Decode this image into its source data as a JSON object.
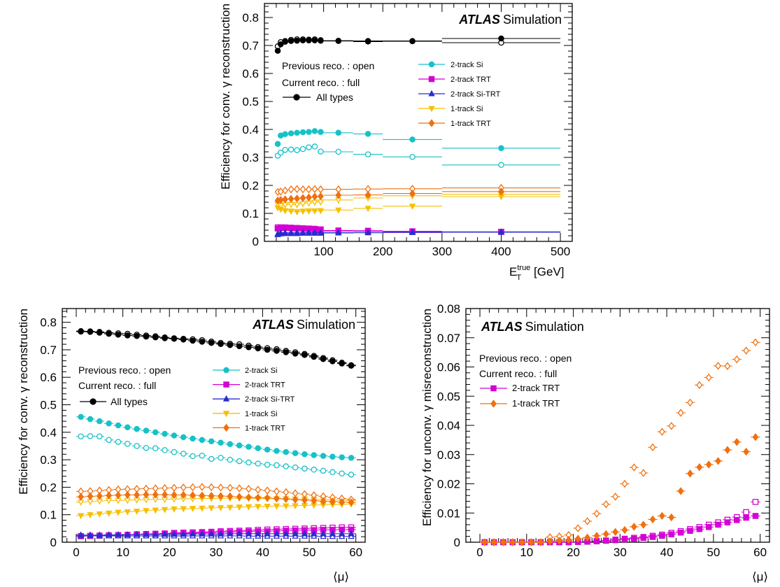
{
  "chart_data": [
    {
      "id": "top",
      "type": "scatter",
      "xlabel": "E",
      "xlabel_sub": "T",
      "xlabel_sup": "true",
      "xlabel_unit": "[GeV]",
      "ylabel": "Efficiency for conv. γ reconstruction",
      "xlim": [
        0,
        520
      ],
      "ylim": [
        0,
        0.85
      ],
      "xticks": [
        100,
        200,
        300,
        400,
        500
      ],
      "yticks": [
        0,
        0.1,
        0.2,
        0.3,
        0.4,
        0.5,
        0.6,
        0.7,
        0.8
      ],
      "atlas": "ATLAS",
      "atlas_suffix": "Simulation",
      "note_previous": "Previous reco. : open",
      "note_current": "Current reco.   : full",
      "legend_all": "All types",
      "legend": [
        "2-track Si",
        "2-track TRT",
        "2-track Si-TRT",
        "1-track Si",
        "1-track TRT"
      ],
      "x": [
        22.5,
        27.5,
        35,
        45,
        55,
        65,
        75,
        85,
        95,
        125,
        175,
        250,
        400
      ],
      "xerr": [
        2.5,
        2.5,
        5,
        5,
        5,
        5,
        5,
        5,
        5,
        25,
        25,
        50,
        100
      ],
      "series": [
        {
          "color": "#000000",
          "marker": "circle",
          "current": [
            0.681,
            0.704,
            0.713,
            0.716,
            0.717,
            0.718,
            0.718,
            0.718,
            0.717,
            0.716,
            0.716,
            0.716,
            0.725
          ],
          "previous": [
            0.697,
            0.712,
            0.716,
            0.72,
            0.722,
            0.722,
            0.721,
            0.722,
            0.719,
            0.717,
            0.714,
            0.715,
            0.71
          ]
        },
        {
          "color": "#17c1c8",
          "marker": "circle",
          "current": [
            0.348,
            0.378,
            0.383,
            0.386,
            0.388,
            0.39,
            0.391,
            0.394,
            0.391,
            0.388,
            0.384,
            0.364,
            0.333
          ],
          "previous": [
            0.306,
            0.317,
            0.327,
            0.328,
            0.326,
            0.33,
            0.336,
            0.339,
            0.321,
            0.32,
            0.311,
            0.302,
            0.273
          ]
        },
        {
          "color": "#d400d4",
          "marker": "square",
          "current": [
            0.046,
            0.048,
            0.048,
            0.047,
            0.046,
            0.045,
            0.044,
            0.042,
            0.04,
            0.037,
            0.036,
            0.035,
            0.034
          ],
          "previous": [
            0.05,
            0.05,
            0.05,
            0.049,
            0.048,
            0.047,
            0.046,
            0.045,
            0.043,
            0.039,
            0.038,
            0.036,
            0.034
          ]
        },
        {
          "color": "#2b2bcf",
          "marker": "triangle",
          "current": [
            0.027,
            0.03,
            0.031,
            0.031,
            0.031,
            0.031,
            0.031,
            0.031,
            0.031,
            0.031,
            0.031,
            0.032,
            0.033
          ],
          "previous": [
            0.024,
            0.027,
            0.028,
            0.028,
            0.028,
            0.029,
            0.029,
            0.029,
            0.029,
            0.03,
            0.031,
            0.032,
            0.033
          ]
        },
        {
          "color": "#f5c000",
          "marker": "triangledown",
          "current": [
            0.12,
            0.115,
            0.11,
            0.108,
            0.106,
            0.108,
            0.109,
            0.109,
            0.11,
            0.112,
            0.118,
            0.126,
            0.16
          ],
          "previous": [
            0.133,
            0.127,
            0.131,
            0.132,
            0.131,
            0.135,
            0.137,
            0.14,
            0.141,
            0.148,
            0.155,
            0.163,
            0.168
          ]
        },
        {
          "color": "#f07010",
          "marker": "diamond",
          "current": [
            0.146,
            0.148,
            0.15,
            0.152,
            0.153,
            0.155,
            0.157,
            0.16,
            0.161,
            0.165,
            0.166,
            0.171,
            0.178
          ],
          "previous": [
            0.177,
            0.178,
            0.182,
            0.186,
            0.187,
            0.186,
            0.186,
            0.187,
            0.186,
            0.186,
            0.187,
            0.188,
            0.191
          ]
        }
      ]
    },
    {
      "id": "bottom-left",
      "type": "scatter",
      "xlabel": "⟨μ⟩",
      "ylabel": "Efficiency for conv. γ reconstruction",
      "xlim": [
        -3,
        62
      ],
      "ylim": [
        0,
        0.85
      ],
      "xticks": [
        0,
        10,
        20,
        30,
        40,
        50,
        60
      ],
      "yticks": [
        0,
        0.1,
        0.2,
        0.3,
        0.4,
        0.5,
        0.6,
        0.7,
        0.8
      ],
      "atlas": "ATLAS",
      "atlas_suffix": "Simulation",
      "note_previous": "Previous reco. : open",
      "note_current": "Current reco.   : full",
      "legend_all": "All types",
      "legend": [
        "2-track Si",
        "2-track TRT",
        "2-track Si-TRT",
        "1-track Si",
        "1-track TRT"
      ],
      "x": [
        1,
        3,
        5,
        7,
        9,
        11,
        13,
        15,
        17,
        19,
        21,
        23,
        25,
        27,
        29,
        31,
        33,
        35,
        37,
        39,
        41,
        43,
        45,
        47,
        49,
        51,
        53,
        55,
        57,
        59
      ],
      "xerr": [
        1,
        1,
        1,
        1,
        1,
        1,
        1,
        1,
        1,
        1,
        1,
        1,
        1,
        1,
        1,
        1,
        1,
        1,
        1,
        1,
        1,
        1,
        1,
        1,
        1,
        1,
        1,
        1,
        1,
        1
      ],
      "series": [
        {
          "color": "#000000",
          "marker": "circle",
          "current": [
            0.766,
            0.765,
            0.762,
            0.758,
            0.755,
            0.752,
            0.75,
            0.748,
            0.745,
            0.742,
            0.74,
            0.737,
            0.733,
            0.729,
            0.725,
            0.721,
            0.717,
            0.713,
            0.709,
            0.705,
            0.7,
            0.696,
            0.691,
            0.686,
            0.681,
            0.674,
            0.666,
            0.658,
            0.65,
            0.642
          ],
          "previous": [
            0.768,
            0.767,
            0.765,
            0.762,
            0.76,
            0.758,
            0.755,
            0.752,
            0.749,
            0.745,
            0.742,
            0.74,
            0.738,
            0.735,
            0.73,
            0.725,
            0.722,
            0.72,
            0.715,
            0.71,
            0.706,
            0.702,
            0.696,
            0.691,
            0.685,
            0.678,
            0.67,
            0.662,
            0.653,
            0.644
          ]
        },
        {
          "color": "#17c1c8",
          "marker": "circle",
          "current": [
            0.456,
            0.448,
            0.44,
            0.432,
            0.425,
            0.418,
            0.412,
            0.406,
            0.4,
            0.394,
            0.388,
            0.382,
            0.377,
            0.372,
            0.367,
            0.362,
            0.357,
            0.352,
            0.347,
            0.342,
            0.337,
            0.332,
            0.328,
            0.324,
            0.32,
            0.317,
            0.314,
            0.311,
            0.309,
            0.307
          ],
          "previous": [
            0.385,
            0.386,
            0.385,
            0.372,
            0.365,
            0.358,
            0.35,
            0.343,
            0.342,
            0.335,
            0.328,
            0.322,
            0.313,
            0.315,
            0.303,
            0.307,
            0.3,
            0.295,
            0.29,
            0.286,
            0.282,
            0.28,
            0.276,
            0.272,
            0.268,
            0.264,
            0.26,
            0.255,
            0.25,
            0.246
          ]
        },
        {
          "color": "#d400d4",
          "marker": "square",
          "current": [
            0.022,
            0.023,
            0.024,
            0.025,
            0.026,
            0.027,
            0.028,
            0.028,
            0.029,
            0.03,
            0.031,
            0.032,
            0.033,
            0.034,
            0.035,
            0.036,
            0.037,
            0.038,
            0.039,
            0.04,
            0.04,
            0.041,
            0.042,
            0.043,
            0.044,
            0.044,
            0.045,
            0.045,
            0.046,
            0.046
          ],
          "previous": [
            0.022,
            0.023,
            0.024,
            0.025,
            0.026,
            0.027,
            0.029,
            0.03,
            0.031,
            0.032,
            0.034,
            0.035,
            0.036,
            0.037,
            0.038,
            0.04,
            0.041,
            0.042,
            0.043,
            0.045,
            0.046,
            0.047,
            0.048,
            0.049,
            0.05,
            0.051,
            0.052,
            0.053,
            0.054,
            0.054
          ]
        },
        {
          "color": "#2b2bcf",
          "marker": "triangle",
          "current": [
            0.026,
            0.026,
            0.026,
            0.027,
            0.027,
            0.027,
            0.028,
            0.028,
            0.028,
            0.029,
            0.029,
            0.029,
            0.03,
            0.03,
            0.03,
            0.03,
            0.031,
            0.031,
            0.031,
            0.031,
            0.031,
            0.031,
            0.031,
            0.031,
            0.031,
            0.031,
            0.031,
            0.031,
            0.031,
            0.031
          ],
          "previous": [
            0.023,
            0.023,
            0.023,
            0.023,
            0.023,
            0.023,
            0.023,
            0.023,
            0.023,
            0.023,
            0.023,
            0.023,
            0.023,
            0.023,
            0.023,
            0.023,
            0.023,
            0.023,
            0.022,
            0.022,
            0.022,
            0.022,
            0.022,
            0.022,
            0.022,
            0.022,
            0.021,
            0.021,
            0.021,
            0.021
          ]
        },
        {
          "color": "#f5c000",
          "marker": "triangledown",
          "current": [
            0.097,
            0.1,
            0.103,
            0.106,
            0.109,
            0.111,
            0.113,
            0.115,
            0.117,
            0.119,
            0.121,
            0.122,
            0.123,
            0.124,
            0.125,
            0.126,
            0.127,
            0.128,
            0.129,
            0.13,
            0.131,
            0.132,
            0.132,
            0.133,
            0.134,
            0.135,
            0.136,
            0.137,
            0.138,
            0.139
          ],
          "previous": [
            0.146,
            0.148,
            0.15,
            0.152,
            0.152,
            0.153,
            0.154,
            0.155,
            0.156,
            0.156,
            0.157,
            0.158,
            0.158,
            0.159,
            0.159,
            0.16,
            0.16,
            0.16,
            0.16,
            0.159,
            0.159,
            0.158,
            0.158,
            0.157,
            0.157,
            0.156,
            0.155,
            0.154,
            0.153,
            0.152
          ]
        },
        {
          "color": "#f07010",
          "marker": "diamond",
          "current": [
            0.165,
            0.167,
            0.168,
            0.17,
            0.171,
            0.172,
            0.172,
            0.173,
            0.173,
            0.173,
            0.172,
            0.172,
            0.171,
            0.17,
            0.169,
            0.168,
            0.167,
            0.165,
            0.163,
            0.162,
            0.161,
            0.159,
            0.157,
            0.155,
            0.153,
            0.151,
            0.149,
            0.148,
            0.146,
            0.145
          ],
          "previous": [
            0.185,
            0.186,
            0.188,
            0.19,
            0.192,
            0.193,
            0.194,
            0.195,
            0.196,
            0.197,
            0.198,
            0.199,
            0.2,
            0.201,
            0.2,
            0.199,
            0.198,
            0.196,
            0.194,
            0.191,
            0.188,
            0.185,
            0.182,
            0.178,
            0.175,
            0.171,
            0.167,
            0.163,
            0.159,
            0.155
          ]
        }
      ]
    },
    {
      "id": "bottom-right",
      "type": "scatter",
      "xlabel": "⟨μ⟩",
      "ylabel": "Efficiency for unconv. γ misreconstruction",
      "xlim": [
        -3,
        62
      ],
      "ylim": [
        0,
        0.08
      ],
      "xticks": [
        0,
        10,
        20,
        30,
        40,
        50,
        60
      ],
      "yticks": [
        0,
        0.01,
        0.02,
        0.03,
        0.04,
        0.05,
        0.06,
        0.07,
        0.08
      ],
      "atlas": "ATLAS",
      "atlas_suffix": "Simulation",
      "note_previous": "Previous reco. : open",
      "note_current": "Current reco.   : full",
      "legend": [
        "2-track TRT",
        "1-track TRT"
      ],
      "x": [
        1,
        3,
        5,
        7,
        9,
        11,
        13,
        15,
        17,
        19,
        21,
        23,
        25,
        27,
        29,
        31,
        33,
        35,
        37,
        39,
        41,
        43,
        45,
        47,
        49,
        51,
        53,
        55,
        57,
        59
      ],
      "xerr": [
        1,
        1,
        1,
        1,
        1,
        1,
        1,
        1,
        1,
        1,
        1,
        1,
        1,
        1,
        1,
        1,
        1,
        1,
        1,
        1,
        1,
        1,
        1,
        1,
        1,
        1,
        1,
        1,
        1,
        1
      ],
      "series": [
        {
          "color": "#d400d4",
          "marker": "square",
          "current": [
            0,
            0,
            0,
            0,
            0,
            0,
            0,
            0,
            0,
            0,
            0.0001,
            0.0002,
            0.0003,
            0.0005,
            0.0007,
            0.001,
            0.0012,
            0.0015,
            0.0018,
            0.0022,
            0.0027,
            0.0033,
            0.0039,
            0.0045,
            0.0052,
            0.006,
            0.0068,
            0.0076,
            0.0084,
            0.009
          ],
          "previous": [
            0,
            0,
            0,
            0,
            0,
            0,
            0,
            0,
            0,
            0,
            0.0001,
            0.0002,
            0.0004,
            0.0006,
            0.0009,
            0.0012,
            0.0015,
            0.0018,
            0.0022,
            0.0026,
            0.0032,
            0.0038,
            0.0045,
            0.0052,
            0.006,
            0.0068,
            0.0077,
            0.0086,
            0.0103,
            0.0138
          ]
        },
        {
          "color": "#f07010",
          "marker": "diamond",
          "current": [
            0,
            0,
            0,
            0,
            0,
            0,
            0,
            0.0003,
            0.0005,
            0.0008,
            0.0012,
            0.0016,
            0.0022,
            0.0028,
            0.0035,
            0.0042,
            0.0053,
            0.006,
            0.0078,
            0.009,
            0.0085,
            0.0175,
            0.0235,
            0.0257,
            0.0266,
            0.0278,
            0.0316,
            0.0343,
            0.031,
            0.036
          ],
          "previous": [
            0,
            0,
            0,
            0,
            0,
            0,
            0,
            0.0017,
            0.002,
            0.0025,
            0.0048,
            0.0072,
            0.0098,
            0.013,
            0.0156,
            0.02,
            0.0256,
            0.0237,
            0.0325,
            0.0378,
            0.0398,
            0.0443,
            0.0478,
            0.0538,
            0.0564,
            0.0604,
            0.0603,
            0.0626,
            0.0656,
            0.0684
          ]
        }
      ]
    }
  ]
}
